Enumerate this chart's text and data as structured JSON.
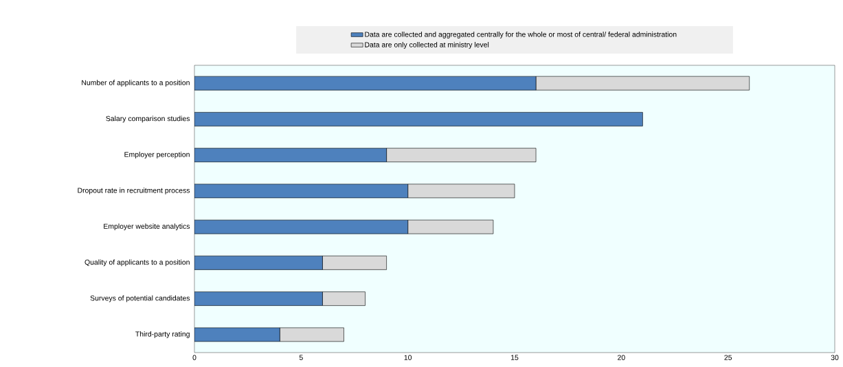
{
  "chart_data": {
    "type": "bar",
    "orientation": "horizontal",
    "stacked": true,
    "categories": [
      "Number of applicants to a position",
      "Salary comparison studies",
      "Employer perception",
      "Dropout rate in recruitment process",
      "Employer website analytics",
      "Quality of applicants to a position",
      "Surveys of potential candidates",
      "Third-party rating"
    ],
    "series": [
      {
        "name": "Data are collected and aggregated centrally for the whole or most of central/ federal administration",
        "color": "#4e81bd",
        "values": [
          16,
          21,
          9,
          10,
          10,
          6,
          6,
          4
        ]
      },
      {
        "name": "Data are only collected at ministry level",
        "color": "#d9d9d9",
        "values": [
          10,
          0,
          7,
          5,
          4,
          3,
          2,
          3
        ]
      }
    ],
    "xlim": [
      0,
      30
    ],
    "xticks": [
      0,
      5,
      10,
      15,
      20,
      25,
      30
    ],
    "legend": "top",
    "grid": false
  }
}
